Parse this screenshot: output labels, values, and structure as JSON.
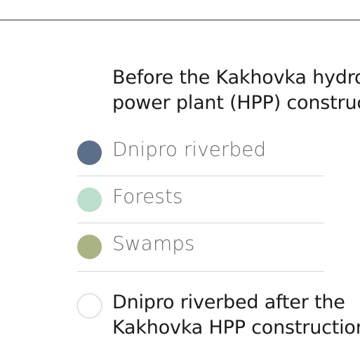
{
  "legend": {
    "before_heading_line1": "Before the Kakhovka hydroelectric",
    "before_heading_line2": "power plant (HPP) construction",
    "items": [
      {
        "label": "Dnipro riverbed",
        "color": "#5b6f8a",
        "icon": "riverbed-swatch-icon"
      },
      {
        "label": "Forests",
        "color": "#bcdfcd",
        "icon": "forest-swatch-icon"
      },
      {
        "label": "Swamps",
        "color": "#aab384",
        "icon": "swamp-swatch-icon"
      }
    ],
    "after_heading_line1": "Dnipro riverbed after the",
    "after_heading_line2": "Kakhovka HPP construction",
    "after_swatch_color": "#ffffff"
  }
}
